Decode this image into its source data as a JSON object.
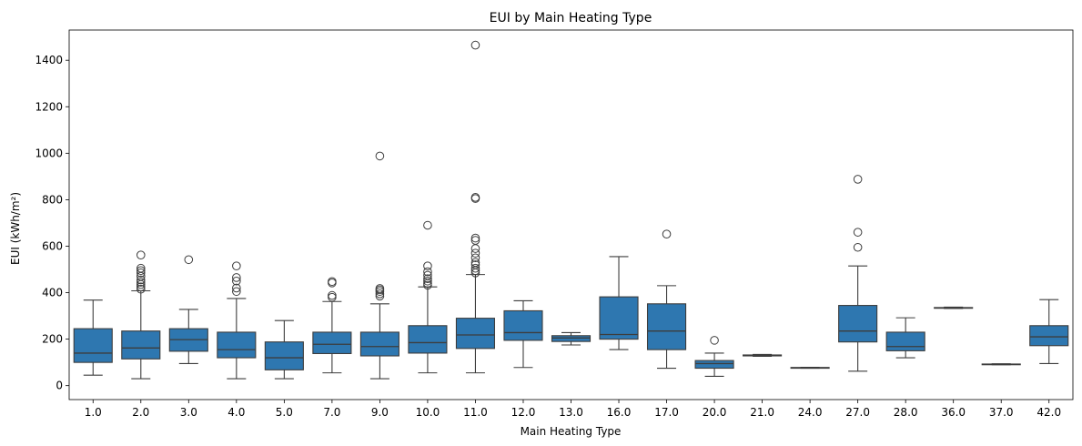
{
  "chart_data": {
    "type": "box",
    "title": "EUI by Main Heating Type",
    "xlabel": "Main Heating Type",
    "ylabel": "EUI (kWh/m²)",
    "ylim": [
      -60,
      1530
    ],
    "yticks": [
      0,
      200,
      400,
      600,
      800,
      1000,
      1200,
      1400
    ],
    "grid": false,
    "box_color": "#2e77b0",
    "line_color": "#3d3d3d",
    "categories": [
      "1.0",
      "2.0",
      "3.0",
      "4.0",
      "5.0",
      "7.0",
      "9.0",
      "10.0",
      "11.0",
      "12.0",
      "13.0",
      "16.0",
      "17.0",
      "20.0",
      "21.0",
      "24.0",
      "27.0",
      "28.0",
      "36.0",
      "37.0",
      "42.0"
    ],
    "boxes": [
      {
        "category": "1.0",
        "whisker_low": 45,
        "q1": 100,
        "median": 140,
        "q3": 245,
        "whisker_high": 368,
        "outliers": []
      },
      {
        "category": "2.0",
        "whisker_low": 30,
        "q1": 115,
        "median": 162,
        "q3": 235,
        "whisker_high": 408,
        "outliers": [
          415,
          425,
          435,
          445,
          455,
          470,
          485,
          495,
          505,
          562
        ]
      },
      {
        "category": "3.0",
        "whisker_low": 95,
        "q1": 148,
        "median": 198,
        "q3": 245,
        "whisker_high": 328,
        "outliers": [
          542
        ]
      },
      {
        "category": "4.0",
        "whisker_low": 30,
        "q1": 120,
        "median": 155,
        "q3": 230,
        "whisker_high": 375,
        "outliers": [
          405,
          420,
          450,
          465,
          515
        ]
      },
      {
        "category": "5.0",
        "whisker_low": 30,
        "q1": 68,
        "median": 120,
        "q3": 188,
        "whisker_high": 280,
        "outliers": []
      },
      {
        "category": "7.0",
        "whisker_low": 55,
        "q1": 138,
        "median": 178,
        "q3": 230,
        "whisker_high": 362,
        "outliers": [
          380,
          388,
          442,
          448
        ]
      },
      {
        "category": "9.0",
        "whisker_low": 30,
        "q1": 128,
        "median": 168,
        "q3": 230,
        "whisker_high": 352,
        "outliers": [
          385,
          395,
          405,
          412,
          418,
          988
        ]
      },
      {
        "category": "10.0",
        "whisker_low": 55,
        "q1": 140,
        "median": 185,
        "q3": 258,
        "whisker_high": 425,
        "outliers": [
          432,
          440,
          450,
          460,
          475,
          490,
          515,
          690
        ]
      },
      {
        "category": "11.0",
        "whisker_low": 55,
        "q1": 160,
        "median": 218,
        "q3": 290,
        "whisker_high": 478,
        "outliers": [
          485,
          495,
          505,
          520,
          530,
          550,
          570,
          590,
          625,
          635,
          805,
          810,
          1465
        ]
      },
      {
        "category": "12.0",
        "whisker_low": 78,
        "q1": 195,
        "median": 228,
        "q3": 322,
        "whisker_high": 365,
        "outliers": []
      },
      {
        "category": "13.0",
        "whisker_low": 175,
        "q1": 190,
        "median": 205,
        "q3": 215,
        "whisker_high": 228,
        "outliers": []
      },
      {
        "category": "16.0",
        "whisker_low": 155,
        "q1": 200,
        "median": 220,
        "q3": 382,
        "whisker_high": 555,
        "outliers": []
      },
      {
        "category": "17.0",
        "whisker_low": 75,
        "q1": 155,
        "median": 235,
        "q3": 352,
        "whisker_high": 430,
        "outliers": [
          652
        ]
      },
      {
        "category": "20.0",
        "whisker_low": 40,
        "q1": 75,
        "median": 95,
        "q3": 108,
        "whisker_high": 140,
        "outliers": [
          195
        ]
      },
      {
        "category": "21.0",
        "whisker_low": 126,
        "q1": 128,
        "median": 130,
        "q3": 132,
        "whisker_high": 134,
        "outliers": []
      },
      {
        "category": "24.0",
        "whisker_low": 75,
        "q1": 76,
        "median": 77,
        "q3": 78,
        "whisker_high": 79,
        "outliers": []
      },
      {
        "category": "27.0",
        "whisker_low": 62,
        "q1": 188,
        "median": 235,
        "q3": 345,
        "whisker_high": 515,
        "outliers": [
          595,
          660,
          888
        ]
      },
      {
        "category": "28.0",
        "whisker_low": 120,
        "q1": 150,
        "median": 168,
        "q3": 230,
        "whisker_high": 292,
        "outliers": []
      },
      {
        "category": "36.0",
        "whisker_low": 332,
        "q1": 333,
        "median": 334,
        "q3": 336,
        "whisker_high": 338,
        "outliers": []
      },
      {
        "category": "37.0",
        "whisker_low": 90,
        "q1": 91,
        "median": 92,
        "q3": 93,
        "whisker_high": 94,
        "outliers": []
      },
      {
        "category": "42.0",
        "whisker_low": 95,
        "q1": 172,
        "median": 210,
        "q3": 258,
        "whisker_high": 370,
        "outliers": []
      }
    ]
  }
}
